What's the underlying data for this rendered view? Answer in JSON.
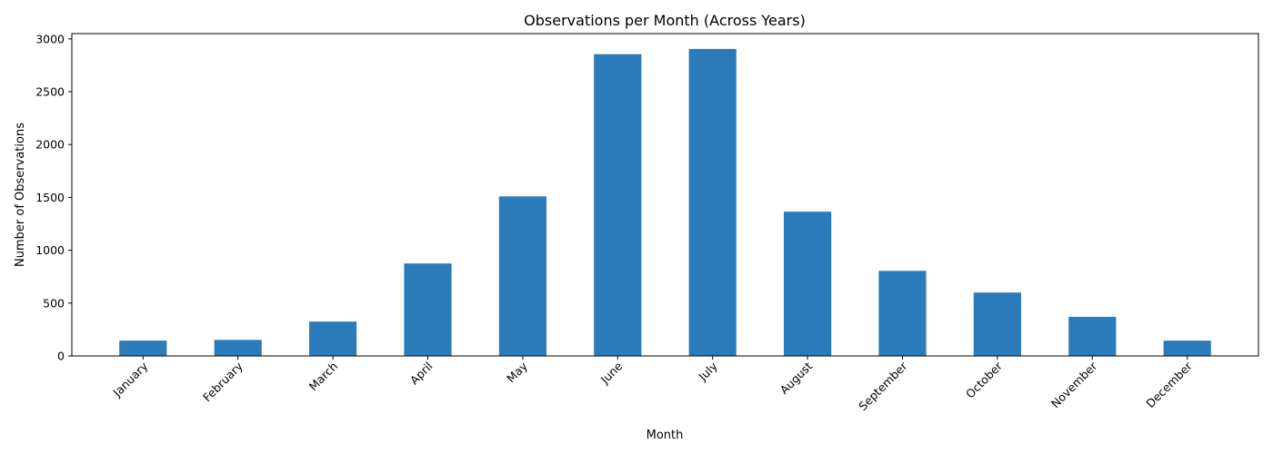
{
  "chart_data": {
    "type": "bar",
    "title": "Observations per Month (Across Years)",
    "xlabel": "Month",
    "ylabel": "Number of Observations",
    "categories": [
      "January",
      "February",
      "March",
      "April",
      "May",
      "June",
      "July",
      "August",
      "September",
      "October",
      "November",
      "December"
    ],
    "values": [
      145,
      152,
      325,
      875,
      1510,
      2855,
      2905,
      1365,
      805,
      600,
      370,
      145
    ],
    "ylim": [
      0,
      3050
    ],
    "yticks": [
      0,
      500,
      1000,
      1500,
      2000,
      2500,
      3000
    ],
    "bar_color": "#2b7bba",
    "grid": false,
    "legend": "none"
  }
}
